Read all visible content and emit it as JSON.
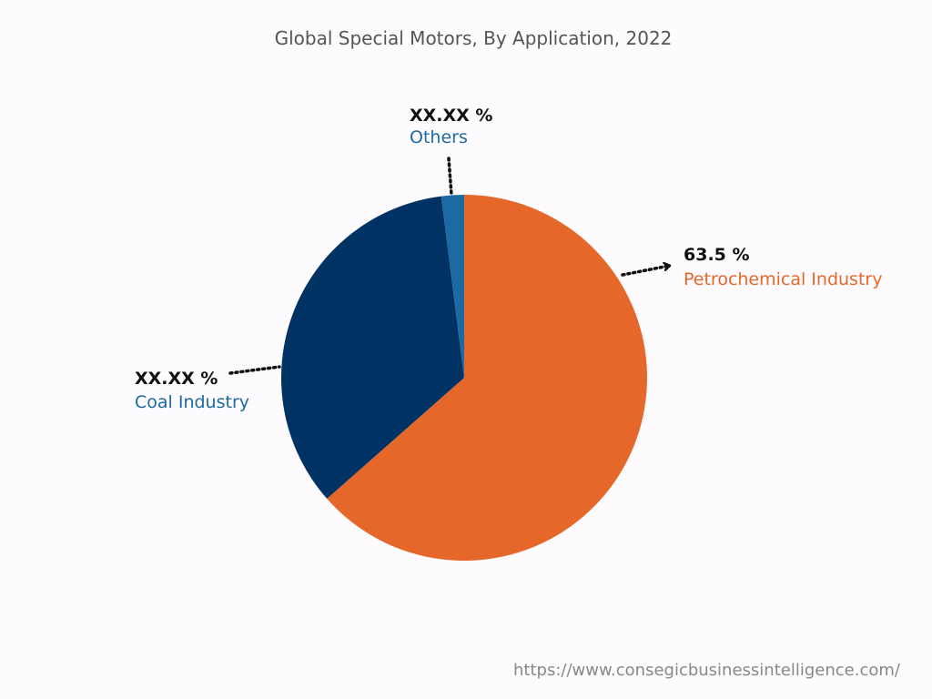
{
  "chart_data": {
    "type": "pie",
    "title": "Global Special Motors, By Application, 2022",
    "slices": [
      {
        "label": "Petrochemical Industry",
        "display": "63.5 %",
        "value": 63.5,
        "color": "#e5682a"
      },
      {
        "label": "Coal Industry",
        "display": "XX.XX %",
        "value": 34.5,
        "color": "#003263"
      },
      {
        "label": "Others",
        "display": "XX.XX %",
        "value": 2.0,
        "color": "#1c6aa4"
      }
    ],
    "legend": "none"
  },
  "footer": {
    "url": "https://www.consegicbusinessintelligence.com/"
  }
}
